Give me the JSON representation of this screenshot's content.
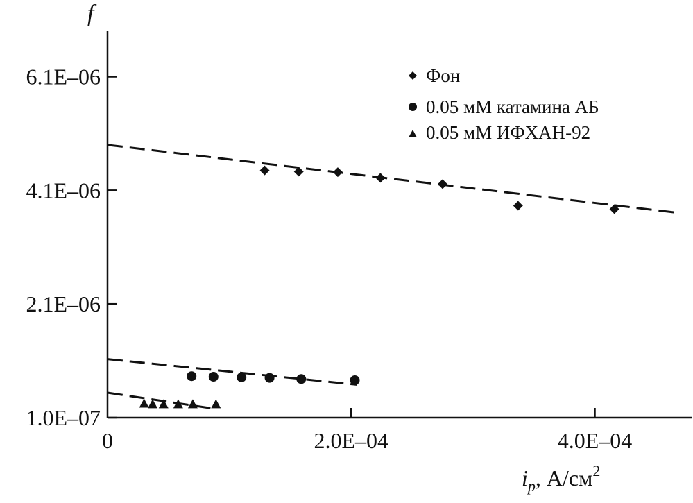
{
  "chart_data": {
    "type": "scatter",
    "ylabel": "f",
    "xlabel_var": "i",
    "xlabel_sub": "p",
    "xlabel_unit": ", А/см",
    "xlabel_sup": "2",
    "xlim": [
      0,
      0.00048
    ],
    "ylim": [
      1e-07,
      6.9e-06
    ],
    "x_ticks": [
      {
        "value": 0,
        "label": "0"
      },
      {
        "value": 0.0002,
        "label": "2.0E–04"
      },
      {
        "value": 0.0004,
        "label": "4.0E–04"
      }
    ],
    "y_ticks": [
      {
        "value": 1e-07,
        "label": "1.0E–07"
      },
      {
        "value": 2.1e-06,
        "label": "2.1E–06"
      },
      {
        "value": 4.1e-06,
        "label": "4.1E–06"
      },
      {
        "value": 6.1e-06,
        "label": "6.1E–06"
      }
    ],
    "legend_position": "top-right",
    "series": [
      {
        "name": "Фон",
        "marker": "diamond",
        "x": [
          0.000129,
          0.000157,
          0.000189,
          0.000224,
          0.000275,
          0.000337,
          0.000416
        ],
        "y": [
          4.45e-06,
          4.43e-06,
          4.42e-06,
          4.32e-06,
          4.21e-06,
          3.83e-06,
          3.77e-06
        ],
        "fit": {
          "x": [
            0,
            0.00047
          ],
          "y": [
            4.9e-06,
            3.7e-06
          ]
        }
      },
      {
        "name": "0.05 мМ катамина АБ",
        "marker": "circle",
        "x": [
          6.9e-05,
          8.7e-05,
          0.00011,
          0.000133,
          0.000159,
          0.000203
        ],
        "y": [
          8.3e-07,
          8.2e-07,
          8.1e-07,
          8e-07,
          7.8e-07,
          7.6e-07
        ],
        "fit": {
          "x": [
            0,
            0.000205
          ],
          "y": [
            1.13e-06,
            6.8e-07
          ]
        }
      },
      {
        "name": "0.05 мМ ИФХАН-92",
        "marker": "triangle",
        "x": [
          3e-05,
          3.7e-05,
          4.6e-05,
          5.8e-05,
          7e-05,
          8.9e-05
        ],
        "y": [
          3.5e-07,
          3.4e-07,
          3.4e-07,
          3.4e-07,
          3.4e-07,
          3.4e-07
        ],
        "fit": {
          "x": [
            0,
            9e-05
          ],
          "y": [
            5.4e-07,
            2.5e-07
          ]
        }
      }
    ]
  }
}
